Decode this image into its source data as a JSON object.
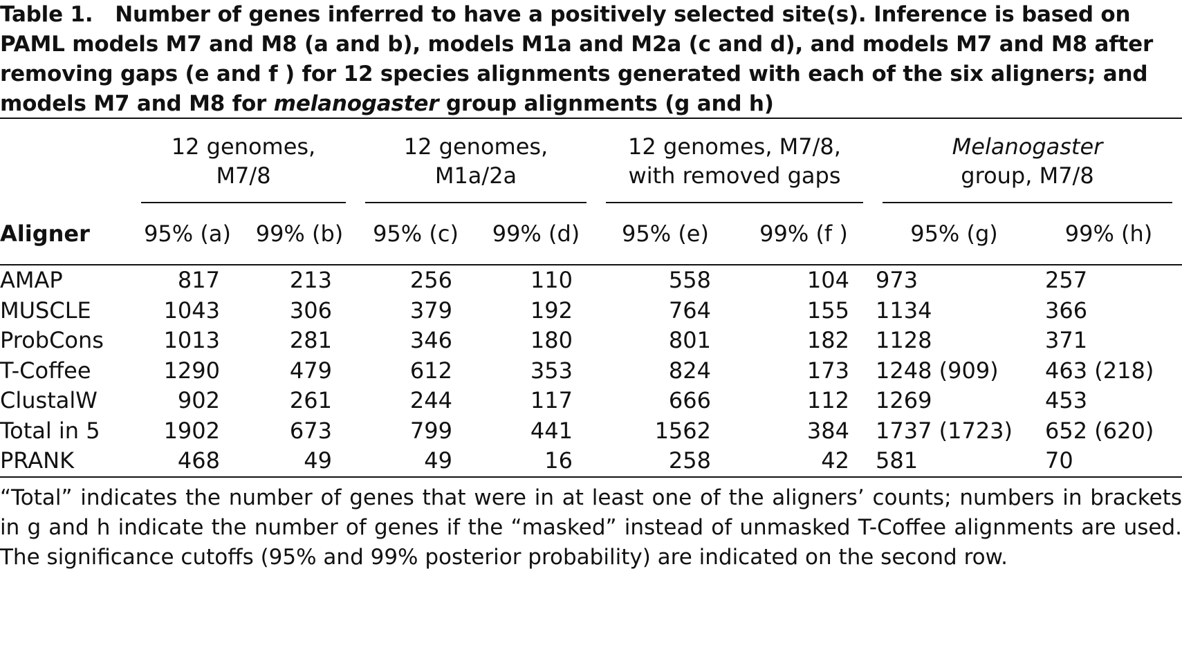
{
  "caption": {
    "label": "Table 1.",
    "text": "Number of genes inferred to have a positively selected site(s). Inference is based on PAML models M7 and M8 (a and b), models M1a and M2a (c and d), and models M7 and M8 after removing gaps (e and f ) for 12 species alignments generated with each of the six aligners; and models M7 and M8 for",
    "italic": "melanogaster",
    "text_end": "group alignments (g and h)"
  },
  "table": {
    "groups": [
      {
        "text": "12 genomes, M7/8"
      },
      {
        "text": "12 genomes, M1a/2a"
      },
      {
        "text": "12 genomes, M7/8, with removed gaps"
      },
      {
        "italic": "Melanogaster",
        "text": "group, M7/8"
      }
    ],
    "columns": [
      "Aligner",
      "95% (a)",
      "99% (b)",
      "95% (c)",
      "99% (d)",
      "95% (e)",
      "99% (f )",
      "95% (g)",
      "99% (h)"
    ],
    "rows": [
      [
        "AMAP",
        817,
        213,
        256,
        110,
        558,
        104,
        973,
        257
      ],
      [
        "MUSCLE",
        1043,
        306,
        379,
        192,
        764,
        155,
        1134,
        366
      ],
      [
        "ProbCons",
        1013,
        281,
        346,
        180,
        801,
        182,
        1128,
        371
      ],
      [
        "T-Coffee",
        1290,
        479,
        612,
        353,
        824,
        173,
        "1248 (909)",
        "463 (218)"
      ],
      [
        "ClustalW",
        902,
        261,
        244,
        117,
        666,
        112,
        1269,
        453
      ],
      [
        "Total in 5",
        1902,
        673,
        799,
        441,
        1562,
        384,
        "1737 (1723)",
        "652 (620)"
      ],
      [
        "PRANK",
        468,
        49,
        49,
        16,
        258,
        42,
        581,
        70
      ]
    ]
  },
  "footnote": "“Total” indicates the number of genes that were in at least one of the aligners’ counts; numbers in brackets in g and h indicate the number of genes if the “masked” instead of unmasked T-Coffee alignments are used. The significance cutoffs (95% and 99% posterior probability) are indicated on the second row."
}
